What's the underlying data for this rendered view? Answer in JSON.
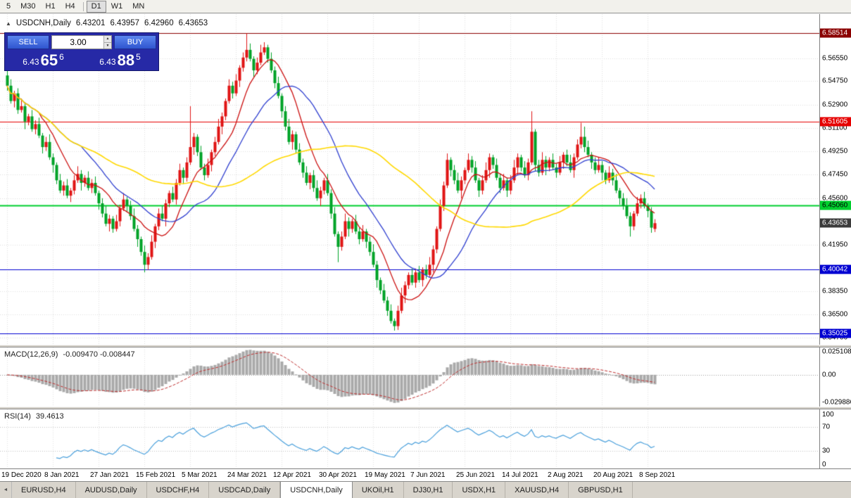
{
  "toolbar": {
    "periods": [
      "5",
      "M30",
      "H1",
      "H4",
      "D1",
      "W1",
      "MN"
    ],
    "active_period": "D1"
  },
  "chart_header": {
    "symbol": "USDCNH,Daily",
    "open": "6.43201",
    "high": "6.43957",
    "low": "6.42960",
    "close": "6.43653"
  },
  "icons": {
    "one_click_toggle": "▲",
    "spinner_up": "▲",
    "spinner_down": "▼",
    "tab_scroll_left": "◄"
  },
  "trade_panel": {
    "sell_label": "SELL",
    "buy_label": "BUY",
    "volume": "3.00",
    "sell_price": {
      "prefix": "6.43",
      "big": "65",
      "sup": "6"
    },
    "buy_price": {
      "prefix": "6.43",
      "big": "88",
      "sup": "5"
    }
  },
  "indicators": {
    "macd": {
      "title": "MACD(12,26,9)",
      "values": "-0.009470 -0.008447",
      "scale": {
        "top": "0.025108",
        "zero": "0.00",
        "bottom": "-0.029886"
      }
    },
    "rsi": {
      "title": "RSI(14)",
      "value": "39.4613",
      "scale": {
        "s100": "100",
        "s70": "70",
        "s30": "30",
        "s0": "0"
      }
    }
  },
  "tabs": [
    "EURUSD,H4",
    "AUDUSD,Daily",
    "USDCHF,H4",
    "USDCAD,Daily",
    "USDCNH,Daily",
    "UKOil,H1",
    "DJ30,H1",
    "USDX,H1",
    "XAUUSD,H4",
    "GBPUSD,H1"
  ],
  "active_tab": "USDCNH,Daily",
  "chart_data": {
    "type": "candlestick",
    "symbol": "USDCNH",
    "timeframe": "Daily",
    "up_color": "#e01414",
    "down_color": "#00a327",
    "x_axis": {
      "labels": [
        "19 Dec 2020",
        "8 Jan 2021",
        "27 Jan 2021",
        "15 Feb 2021",
        "5 Mar 2021",
        "24 Mar 2021",
        "12 Apr 2021",
        "30 Apr 2021",
        "19 May 2021",
        "7 Jun 2021",
        "25 Jun 2021",
        "14 Jul 2021",
        "2 Aug 2021",
        "20 Aug 2021",
        "8 Sep 2021"
      ],
      "tick_indices": [
        0,
        13,
        26,
        39,
        52,
        65,
        78,
        91,
        104,
        117,
        130,
        143,
        156,
        169,
        182
      ]
    },
    "y_axis": {
      "top_price": 6.6,
      "bottom_price": 6.3415,
      "ticks": [
        {
          "label": "6.56550",
          "value": 6.5655
        },
        {
          "label": "6.54750",
          "value": 6.5475
        },
        {
          "label": "6.52900",
          "value": 6.529
        },
        {
          "label": "6.51100",
          "value": 6.511
        },
        {
          "label": "6.49250",
          "value": 6.4925
        },
        {
          "label": "6.47450",
          "value": 6.4745
        },
        {
          "label": "6.45600",
          "value": 6.456
        },
        {
          "label": "6.41950",
          "value": 6.4195
        },
        {
          "label": "6.38350",
          "value": 6.3835
        },
        {
          "label": "6.36500",
          "value": 6.365
        },
        {
          "label": "6.34700",
          "value": 6.347
        }
      ]
    },
    "levels": [
      {
        "label": "6.58514",
        "value": 6.58514,
        "color": "#8b0000",
        "text_color": "#ffffff",
        "width": 1
      },
      {
        "label": "6.51605",
        "value": 6.51605,
        "color": "#e60000",
        "text_color": "#ffffff",
        "width": 1
      },
      {
        "label": "6.45060",
        "value": 6.4506,
        "color": "#00cf2e",
        "text_color": "#000000",
        "width": 2
      },
      {
        "label": "6.40042",
        "value": 6.40042,
        "color": "#0000d2",
        "text_color": "#ffffff",
        "width": 1
      },
      {
        "label": "6.35025",
        "value": 6.35025,
        "color": "#0000d2",
        "text_color": "#ffffff",
        "width": 1
      }
    ],
    "current_price": {
      "label": "6.43653",
      "value": 6.43653,
      "color": "#3c3c3c",
      "text_color": "#ffffff"
    },
    "moving_averages": [
      {
        "type": "sma",
        "period": 10,
        "color": "#cc1111"
      },
      {
        "type": "sma",
        "period": 22,
        "color": "#2f3fd0"
      },
      {
        "type": "sma",
        "period": 55,
        "color": "#ffd900"
      }
    ],
    "macd": {
      "fast": 12,
      "slow": 26,
      "signal": 9,
      "scale_top": 0.025108,
      "scale_bottom": -0.029886,
      "histogram_color": "#a9a9a9",
      "signal_color": "#c03232",
      "current_main": -0.00947,
      "current_signal": -0.008447
    },
    "rsi": {
      "period": 14,
      "value": 39.4613,
      "levels": [
        70,
        30
      ],
      "color": "#4aa0dc"
    },
    "candles": [
      [
        6.552,
        6.556,
        6.54,
        6.544
      ],
      [
        6.544,
        6.549,
        6.53,
        6.532
      ],
      [
        6.532,
        6.54,
        6.527,
        6.538
      ],
      [
        6.538,
        6.542,
        6.522,
        6.525
      ],
      [
        6.525,
        6.534,
        6.523,
        6.528
      ],
      [
        6.528,
        6.531,
        6.51,
        6.516
      ],
      [
        6.516,
        6.522,
        6.513,
        6.52
      ],
      [
        6.52,
        6.525,
        6.508,
        6.51
      ],
      [
        6.51,
        6.517,
        6.506,
        6.514
      ],
      [
        6.514,
        6.519,
        6.503,
        6.505
      ],
      [
        6.505,
        6.507,
        6.491,
        6.496
      ],
      [
        6.496,
        6.504,
        6.493,
        6.5
      ],
      [
        6.5,
        6.506,
        6.486,
        6.488
      ],
      [
        6.488,
        6.491,
        6.476,
        6.482
      ],
      [
        6.482,
        6.484,
        6.467,
        6.47
      ],
      [
        6.47,
        6.475,
        6.46,
        6.462
      ],
      [
        6.462,
        6.469,
        6.458,
        6.466
      ],
      [
        6.466,
        6.471,
        6.456,
        6.458
      ],
      [
        6.458,
        6.464,
        6.453,
        6.462
      ],
      [
        6.462,
        6.474,
        6.459,
        6.47
      ],
      [
        6.47,
        6.481,
        6.468,
        6.475
      ],
      [
        6.475,
        6.478,
        6.462,
        6.468
      ],
      [
        6.468,
        6.474,
        6.465,
        6.472
      ],
      [
        6.472,
        6.477,
        6.462,
        6.464
      ],
      [
        6.464,
        6.471,
        6.46,
        6.468
      ],
      [
        6.468,
        6.473,
        6.458,
        6.46
      ],
      [
        6.46,
        6.462,
        6.447,
        6.452
      ],
      [
        6.452,
        6.456,
        6.441,
        6.444
      ],
      [
        6.444,
        6.45,
        6.434,
        6.436
      ],
      [
        6.436,
        6.443,
        6.43,
        6.44
      ],
      [
        6.44,
        6.442,
        6.429,
        6.432
      ],
      [
        6.432,
        6.443,
        6.43,
        6.438
      ],
      [
        6.438,
        6.451,
        6.434,
        6.448
      ],
      [
        6.448,
        6.46,
        6.446,
        6.455
      ],
      [
        6.455,
        6.457,
        6.445,
        6.45
      ],
      [
        6.45,
        6.454,
        6.439,
        6.442
      ],
      [
        6.442,
        6.448,
        6.43,
        6.432
      ],
      [
        6.432,
        6.435,
        6.418,
        6.424
      ],
      [
        6.424,
        6.426,
        6.411,
        6.414
      ],
      [
        6.414,
        6.419,
        6.398,
        6.404
      ],
      [
        6.404,
        6.413,
        6.4,
        6.41
      ],
      [
        6.41,
        6.427,
        6.408,
        6.422
      ],
      [
        6.422,
        6.436,
        6.417,
        6.434
      ],
      [
        6.434,
        6.448,
        6.431,
        6.444
      ],
      [
        6.444,
        6.45,
        6.438,
        6.44
      ],
      [
        6.44,
        6.455,
        6.434,
        6.452
      ],
      [
        6.452,
        6.462,
        6.449,
        6.46
      ],
      [
        6.46,
        6.465,
        6.453,
        6.455
      ],
      [
        6.455,
        6.471,
        6.451,
        6.468
      ],
      [
        6.468,
        6.483,
        6.466,
        6.478
      ],
      [
        6.478,
        6.48,
        6.467,
        6.472
      ],
      [
        6.472,
        6.488,
        6.469,
        6.484
      ],
      [
        6.484,
        6.528,
        6.482,
        6.496
      ],
      [
        6.496,
        6.507,
        6.49,
        6.504
      ],
      [
        6.504,
        6.506,
        6.489,
        6.492
      ],
      [
        6.492,
        6.497,
        6.478,
        6.48
      ],
      [
        6.48,
        6.483,
        6.47,
        6.474
      ],
      [
        6.474,
        6.487,
        6.472,
        6.482
      ],
      [
        6.482,
        6.494,
        6.477,
        6.492
      ],
      [
        6.492,
        6.504,
        6.489,
        6.5
      ],
      [
        6.5,
        6.518,
        6.498,
        6.512
      ],
      [
        6.512,
        6.523,
        6.506,
        6.52
      ],
      [
        6.52,
        6.534,
        6.517,
        6.532
      ],
      [
        6.532,
        6.549,
        6.53,
        6.544
      ],
      [
        6.544,
        6.547,
        6.534,
        6.538
      ],
      [
        6.538,
        6.553,
        6.536,
        6.548
      ],
      [
        6.548,
        6.56,
        6.543,
        6.558
      ],
      [
        6.558,
        6.57,
        6.555,
        6.566
      ],
      [
        6.566,
        6.585,
        6.563,
        6.572
      ],
      [
        6.572,
        6.577,
        6.563,
        6.565
      ],
      [
        6.565,
        6.567,
        6.551,
        6.556
      ],
      [
        6.556,
        6.566,
        6.553,
        6.562
      ],
      [
        6.562,
        6.576,
        6.56,
        6.57
      ],
      [
        6.57,
        6.578,
        6.568,
        6.574
      ],
      [
        6.574,
        6.576,
        6.562,
        6.565
      ],
      [
        6.565,
        6.57,
        6.554,
        6.556
      ],
      [
        6.556,
        6.559,
        6.542,
        6.546
      ],
      [
        6.546,
        6.551,
        6.534,
        6.536
      ],
      [
        6.536,
        6.538,
        6.519,
        6.524
      ],
      [
        6.524,
        6.528,
        6.509,
        6.512
      ],
      [
        6.512,
        6.518,
        6.498,
        6.5
      ],
      [
        6.5,
        6.509,
        6.494,
        6.506
      ],
      [
        6.506,
        6.508,
        6.491,
        6.494
      ],
      [
        6.494,
        6.499,
        6.482,
        6.484
      ],
      [
        6.484,
        6.487,
        6.472,
        6.476
      ],
      [
        6.476,
        6.481,
        6.466,
        6.468
      ],
      [
        6.468,
        6.476,
        6.463,
        6.474
      ],
      [
        6.474,
        6.478,
        6.461,
        6.464
      ],
      [
        6.464,
        6.47,
        6.454,
        6.456
      ],
      [
        6.456,
        6.465,
        6.45,
        6.462
      ],
      [
        6.462,
        6.472,
        6.459,
        6.47
      ],
      [
        6.47,
        6.475,
        6.458,
        6.46
      ],
      [
        6.46,
        6.463,
        6.44,
        6.444
      ],
      [
        6.444,
        6.449,
        6.426,
        6.428
      ],
      [
        6.428,
        6.43,
        6.406,
        6.418
      ],
      [
        6.418,
        6.43,
        6.415,
        6.426
      ],
      [
        6.426,
        6.444,
        6.424,
        6.438
      ],
      [
        6.438,
        6.441,
        6.426,
        6.432
      ],
      [
        6.432,
        6.44,
        6.429,
        6.438
      ],
      [
        6.438,
        6.443,
        6.428,
        6.43
      ],
      [
        6.43,
        6.433,
        6.42,
        6.424
      ],
      [
        6.424,
        6.435,
        6.422,
        6.43
      ],
      [
        6.43,
        6.432,
        6.417,
        6.422
      ],
      [
        6.422,
        6.426,
        6.411,
        6.414
      ],
      [
        6.414,
        6.42,
        6.402,
        6.404
      ],
      [
        6.404,
        6.407,
        6.386,
        6.392
      ],
      [
        6.392,
        6.394,
        6.381,
        6.384
      ],
      [
        6.384,
        6.389,
        6.374,
        6.376
      ],
      [
        6.376,
        6.379,
        6.364,
        6.368
      ],
      [
        6.368,
        6.373,
        6.358,
        6.36
      ],
      [
        6.36,
        6.362,
        6.3525,
        6.356
      ],
      [
        6.356,
        6.372,
        6.353,
        6.368
      ],
      [
        6.368,
        6.386,
        6.366,
        6.38
      ],
      [
        6.38,
        6.391,
        6.374,
        6.388
      ],
      [
        6.388,
        6.398,
        6.385,
        6.396
      ],
      [
        6.396,
        6.401,
        6.388,
        6.39
      ],
      [
        6.39,
        6.401,
        6.386,
        6.398
      ],
      [
        6.398,
        6.403,
        6.39,
        6.392
      ],
      [
        6.392,
        6.402,
        6.387,
        6.4
      ],
      [
        6.4,
        6.404,
        6.393,
        6.396
      ],
      [
        6.396,
        6.41,
        6.394,
        6.404
      ],
      [
        6.404,
        6.419,
        6.398,
        6.416
      ],
      [
        6.416,
        6.434,
        6.413,
        6.432
      ],
      [
        6.432,
        6.455,
        6.43,
        6.45
      ],
      [
        6.45,
        6.469,
        6.446,
        6.466
      ],
      [
        6.466,
        6.491,
        6.464,
        6.486
      ],
      [
        6.486,
        6.488,
        6.473,
        6.478
      ],
      [
        6.478,
        6.482,
        6.467,
        6.47
      ],
      [
        6.47,
        6.476,
        6.46,
        6.462
      ],
      [
        6.462,
        6.473,
        6.456,
        6.47
      ],
      [
        6.47,
        6.48,
        6.467,
        6.478
      ],
      [
        6.478,
        6.491,
        6.476,
        6.486
      ],
      [
        6.486,
        6.489,
        6.476,
        6.48
      ],
      [
        6.48,
        6.485,
        6.468,
        6.47
      ],
      [
        6.47,
        6.472,
        6.457,
        6.462
      ],
      [
        6.462,
        6.474,
        6.459,
        6.47
      ],
      [
        6.47,
        6.484,
        6.468,
        6.478
      ],
      [
        6.478,
        6.491,
        6.472,
        6.488
      ],
      [
        6.488,
        6.49,
        6.479,
        6.482
      ],
      [
        6.482,
        6.487,
        6.47,
        6.472
      ],
      [
        6.472,
        6.475,
        6.46,
        6.464
      ],
      [
        6.464,
        6.475,
        6.462,
        6.47
      ],
      [
        6.47,
        6.472,
        6.457,
        6.462
      ],
      [
        6.462,
        6.474,
        6.459,
        6.47
      ],
      [
        6.47,
        6.486,
        6.468,
        6.48
      ],
      [
        6.48,
        6.491,
        6.474,
        6.488
      ],
      [
        6.488,
        6.49,
        6.477,
        6.48
      ],
      [
        6.48,
        6.485,
        6.472,
        6.474
      ],
      [
        6.474,
        6.487,
        6.47,
        6.484
      ],
      [
        6.484,
        6.524,
        6.482,
        6.508
      ],
      [
        6.508,
        6.51,
        6.477,
        6.482
      ],
      [
        6.482,
        6.486,
        6.473,
        6.476
      ],
      [
        6.476,
        6.492,
        6.474,
        6.486
      ],
      [
        6.486,
        6.489,
        6.474,
        6.48
      ],
      [
        6.48,
        6.488,
        6.477,
        6.486
      ],
      [
        6.486,
        6.491,
        6.478,
        6.48
      ],
      [
        6.48,
        6.483,
        6.472,
        6.476
      ],
      [
        6.476,
        6.489,
        6.474,
        6.484
      ],
      [
        6.484,
        6.492,
        6.479,
        6.49
      ],
      [
        6.49,
        6.494,
        6.481,
        6.484
      ],
      [
        6.484,
        6.49,
        6.476,
        6.478
      ],
      [
        6.478,
        6.491,
        6.472,
        6.488
      ],
      [
        6.488,
        6.502,
        6.486,
        6.498
      ],
      [
        6.498,
        6.515,
        6.495,
        6.504
      ],
      [
        6.504,
        6.512,
        6.492,
        6.496
      ],
      [
        6.496,
        6.501,
        6.488,
        6.49
      ],
      [
        6.49,
        6.492,
        6.479,
        6.484
      ],
      [
        6.484,
        6.488,
        6.475,
        6.478
      ],
      [
        6.478,
        6.488,
        6.476,
        6.482
      ],
      [
        6.482,
        6.485,
        6.47,
        6.476
      ],
      [
        6.476,
        6.478,
        6.467,
        6.47
      ],
      [
        6.47,
        6.481,
        6.468,
        6.476
      ],
      [
        6.476,
        6.479,
        6.466,
        6.47
      ],
      [
        6.47,
        6.475,
        6.46,
        6.462
      ],
      [
        6.462,
        6.464,
        6.451,
        6.456
      ],
      [
        6.456,
        6.46,
        6.447,
        6.45
      ],
      [
        6.45,
        6.456,
        6.44,
        6.442
      ],
      [
        6.442,
        6.445,
        6.426,
        6.434
      ],
      [
        6.434,
        6.446,
        6.431,
        6.444
      ],
      [
        6.444,
        6.457,
        6.442,
        6.452
      ],
      [
        6.452,
        6.459,
        6.448,
        6.456
      ],
      [
        6.456,
        6.461,
        6.448,
        6.45
      ],
      [
        6.45,
        6.452,
        6.441,
        6.446
      ],
      [
        6.446,
        6.449,
        6.429,
        6.433
      ],
      [
        6.432,
        6.4396,
        6.4296,
        6.4365
      ]
    ]
  }
}
